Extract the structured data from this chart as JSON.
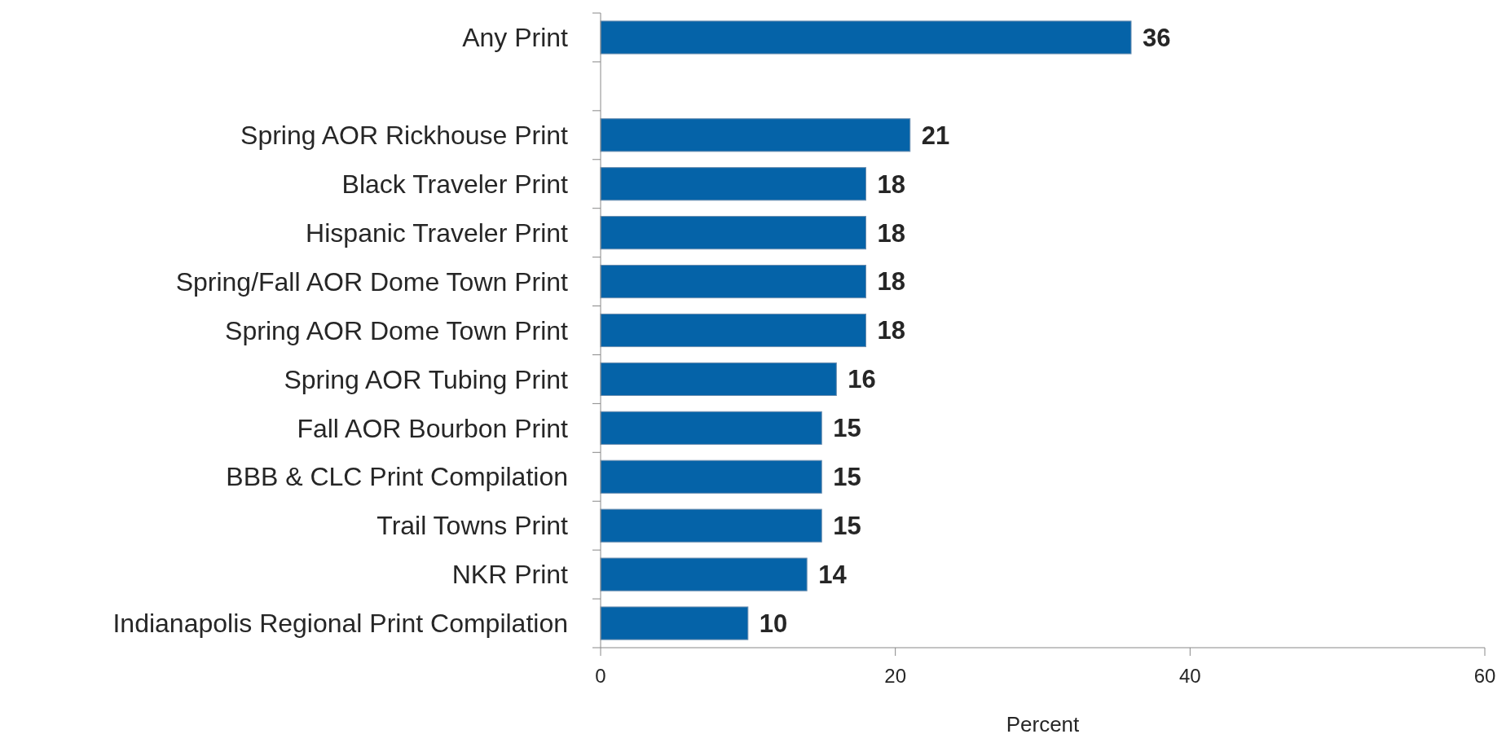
{
  "chart_data": {
    "type": "bar",
    "orientation": "horizontal",
    "xlabel": "Percent",
    "categories": [
      "Any Print",
      null,
      "Spring AOR Rickhouse Print",
      "Black Traveler Print",
      "Hispanic Traveler Print",
      "Spring/Fall AOR Dome Town Print",
      "Spring AOR Dome Town Print",
      "Spring AOR Tubing Print",
      "Fall AOR Bourbon Print",
      "BBB & CLC Print Compilation",
      "Trail Towns Print",
      "NKR Print",
      "Indianapolis Regional Print Compilation"
    ],
    "values": [
      36,
      null,
      21,
      18,
      18,
      18,
      18,
      16,
      15,
      15,
      15,
      14,
      10
    ],
    "color": "#0563a8",
    "xlim": [
      0,
      60
    ],
    "xticks": [
      0,
      20,
      40,
      60
    ],
    "data_labels": true,
    "grid": false
  }
}
